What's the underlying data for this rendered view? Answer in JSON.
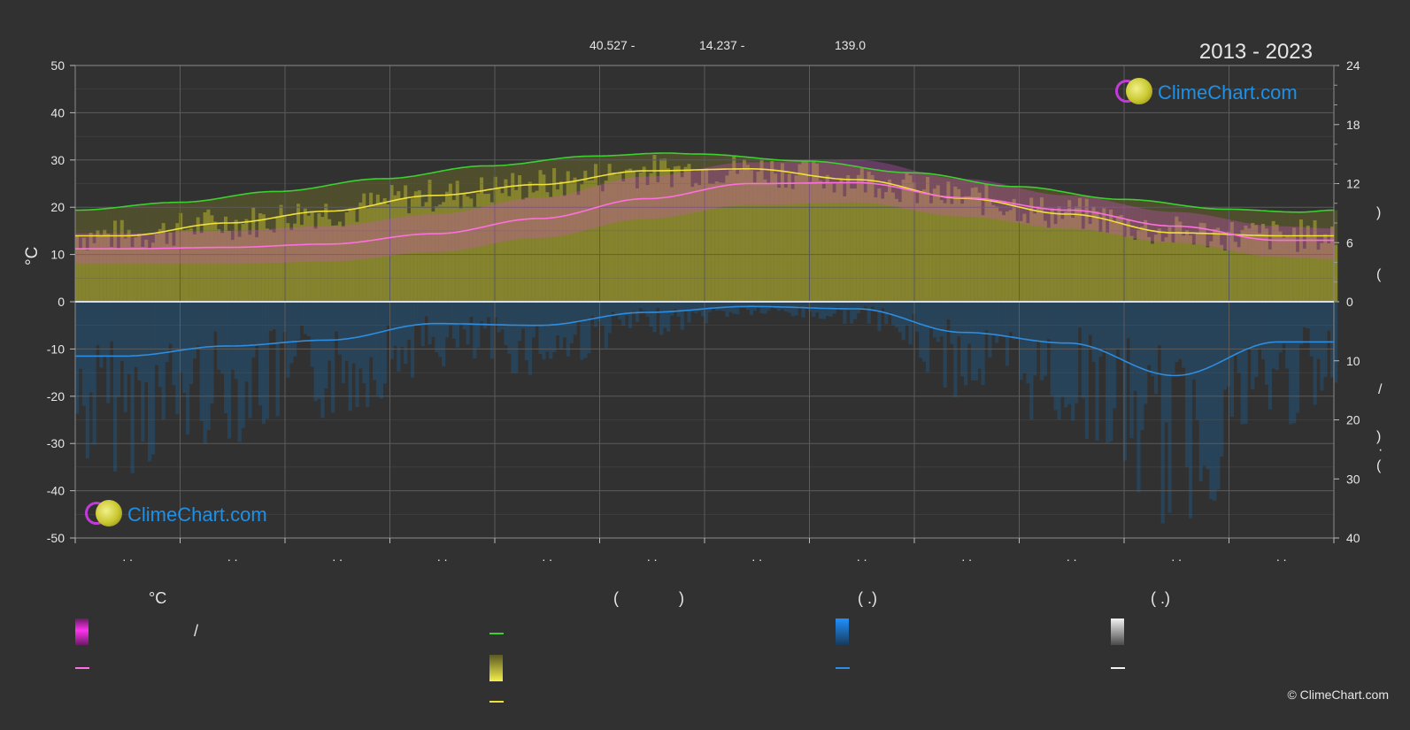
{
  "header": {
    "coord_lat": "40.527 -",
    "coord_lon": "14.237 -",
    "coord_elev": "139.0",
    "years": "2013 - 2023"
  },
  "brand": {
    "logo_top": "ClimeChart.com",
    "logo_bottom": "ClimeChart.com",
    "copyright": "© ClimeChart.com"
  },
  "axes": {
    "left_unit": "°C",
    "left_ticks": [
      50,
      40,
      30,
      20,
      10,
      0,
      -10,
      -20,
      -30,
      -40,
      -50
    ],
    "right_top_ticks": [
      24,
      18,
      12,
      6,
      0
    ],
    "right_bottom_ticks": [
      10,
      20,
      30,
      40
    ],
    "right_glyphs": [
      ")",
      "(",
      "/",
      ")",
      "(",
      "·"
    ],
    "month_ticks": ". .",
    "month_count": 12
  },
  "legend": {
    "col1_header": "°C",
    "col1_slash": "/",
    "col2_paren_open": "(",
    "col2_paren_close": ")",
    "col3_header": "(   .)",
    "col4_header": "(   .)"
  },
  "colors": {
    "background": "#313131",
    "grid": "#5b5b5b",
    "daylight_line": "#3cd030",
    "sunshine_line": "#f0e13a",
    "sunshine_fill": "#8c8a2e",
    "temp_line": "#ff6fe0",
    "temp_band": "#d050c8",
    "precip_line": "#2e8de0",
    "precip_fill": "#264a66",
    "zero_line": "#dddddd",
    "logo_text": "#1e90e6"
  },
  "chart_data": {
    "type": "line",
    "x_unit": "day of year",
    "left_axis": {
      "label": "°C",
      "ylim": [
        -50,
        50
      ]
    },
    "right_top_axis": {
      "ylim": [
        0,
        24
      ],
      "ticks": [
        0,
        6,
        12,
        18,
        24
      ]
    },
    "right_bottom_axis": {
      "ylim": [
        0,
        40
      ],
      "ticks": [
        10,
        20,
        30,
        40
      ]
    },
    "series": [
      {
        "key": "daylight",
        "color": "#3cd030",
        "axis": "right_top",
        "x": [
          1,
          31,
          59,
          90,
          120,
          151,
          172,
          181,
          212,
          243,
          273,
          304,
          334,
          355,
          365
        ],
        "y": [
          9.3,
          10.1,
          11.2,
          12.5,
          13.8,
          14.8,
          15.1,
          15.0,
          14.3,
          13.1,
          11.7,
          10.4,
          9.4,
          9.1,
          9.3
        ]
      },
      {
        "key": "sunshine",
        "color": "#f0e13a",
        "axis": "right_top",
        "x": [
          1,
          15,
          45,
          74,
          105,
          135,
          166,
          196,
          227,
          258,
          288,
          319,
          349,
          365
        ],
        "y": [
          6.7,
          6.7,
          8.0,
          9.2,
          10.8,
          11.9,
          13.3,
          13.5,
          12.4,
          10.5,
          8.9,
          7.0,
          6.7,
          6.7
        ]
      },
      {
        "key": "temperature",
        "color": "#ff6fe0",
        "axis": "left",
        "x": [
          1,
          15,
          45,
          74,
          105,
          135,
          166,
          196,
          227,
          258,
          288,
          319,
          349,
          365
        ],
        "y": [
          11.2,
          11.2,
          11.5,
          12.2,
          14.4,
          17.6,
          21.8,
          25.0,
          25.2,
          22.0,
          19.4,
          16.0,
          13.0,
          13.0
        ]
      },
      {
        "key": "temperature_max",
        "color": "#d050c8",
        "axis": "left",
        "x": [
          1,
          15,
          45,
          74,
          105,
          135,
          166,
          196,
          227,
          258,
          288,
          319,
          349,
          365
        ],
        "y": [
          14.5,
          14.5,
          15.0,
          16.0,
          18.5,
          22.0,
          26.5,
          29.5,
          30.0,
          26.0,
          22.5,
          19.0,
          16.0,
          15.5
        ]
      },
      {
        "key": "temperature_min",
        "color": "#d050c8",
        "axis": "left",
        "x": [
          1,
          15,
          45,
          74,
          105,
          135,
          166,
          196,
          227,
          258,
          288,
          319,
          349,
          365
        ],
        "y": [
          8.0,
          8.0,
          8.0,
          8.5,
          10.5,
          13.5,
          17.5,
          20.5,
          21.0,
          18.0,
          15.5,
          12.5,
          9.5,
          9.0
        ]
      },
      {
        "key": "precipitation",
        "color": "#2e8de0",
        "axis": "right_bottom",
        "x": [
          1,
          15,
          45,
          74,
          105,
          135,
          166,
          196,
          227,
          258,
          288,
          319,
          349,
          365
        ],
        "y": [
          9.2,
          9.2,
          7.5,
          6.5,
          3.7,
          4.0,
          1.8,
          0.8,
          1.2,
          5.2,
          7.0,
          12.5,
          6.8,
          6.8
        ]
      }
    ]
  }
}
